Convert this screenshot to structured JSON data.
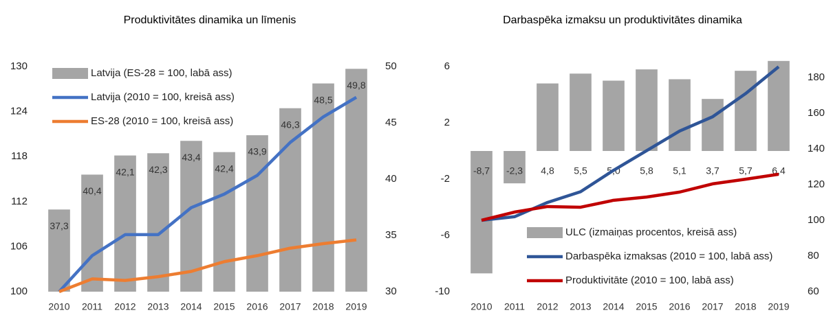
{
  "chart_data": [
    {
      "type": "combo",
      "title": "Produktivitātes dinamika un līmenis",
      "categories": [
        "2010",
        "2011",
        "2012",
        "2013",
        "2014",
        "2015",
        "2016",
        "2017",
        "2018",
        "2019"
      ],
      "ylim": [
        100,
        130
      ],
      "yticks": [
        100,
        106,
        112,
        118,
        124,
        130
      ],
      "y2lim": [
        30,
        50
      ],
      "y2ticks": [
        30,
        35,
        40,
        45,
        50
      ],
      "legend": "upper left",
      "series": [
        {
          "name": "Latvija (ES-28 = 100, labā ass)",
          "kind": "bar",
          "axis": "y2",
          "color": "#a5a5a5",
          "values": [
            37.3,
            40.4,
            42.1,
            42.3,
            43.4,
            42.4,
            43.9,
            46.3,
            48.5,
            49.8
          ],
          "value_labels": [
            "37,3",
            "40,4",
            "42,1",
            "42,3",
            "43,4",
            "42,4",
            "43,9",
            "46,3",
            "48,5",
            "49,8"
          ]
        },
        {
          "name": "Latvija (2010 = 100, kreisā ass)",
          "kind": "line",
          "axis": "y",
          "color": "#4472c4",
          "values": [
            100,
            104.8,
            107.6,
            107.6,
            111.2,
            113.0,
            115.5,
            119.9,
            123.3,
            125.9
          ]
        },
        {
          "name": "ES-28 (2010 = 100, kreisā ass)",
          "kind": "line",
          "axis": "y",
          "color": "#ed7d31",
          "values": [
            100,
            101.7,
            101.5,
            102.0,
            102.7,
            104.0,
            104.8,
            105.8,
            106.4,
            106.9
          ]
        }
      ]
    },
    {
      "type": "combo",
      "title": "Darbaspēka izmaksu un produktivitātes dinamika",
      "categories": [
        "2010",
        "2011",
        "2012",
        "2013",
        "2014",
        "2015",
        "2016",
        "2017",
        "2018",
        "2019"
      ],
      "ylim": [
        -10,
        7
      ],
      "yticks": [
        -10,
        -6,
        -2,
        2,
        6
      ],
      "y2lim": [
        60,
        194
      ],
      "y2ticks": [
        60,
        80,
        100,
        120,
        140,
        160,
        180
      ],
      "legend": "lower right",
      "series": [
        {
          "name": "ULC (izmaiņas procentos, kreisā ass)",
          "kind": "bar",
          "axis": "y",
          "color": "#a5a5a5",
          "values": [
            -8.7,
            -2.3,
            4.8,
            5.5,
            5.0,
            5.8,
            5.1,
            3.7,
            5.7,
            6.4
          ],
          "value_labels": [
            "-8,7",
            "-2,3",
            "4,8",
            "5,5",
            "5,0",
            "5,8",
            "5,1",
            "3,7",
            "5,7",
            "6,4"
          ]
        },
        {
          "name": "Darbaspēka izmaksas (2010 = 100, labā ass)",
          "kind": "line",
          "axis": "y2",
          "color": "#2f5597",
          "values": [
            100,
            102,
            110,
            116,
            128,
            139,
            150,
            158,
            171,
            186
          ]
        },
        {
          "name": "Produktivitāte (2010 = 100, labā ass)",
          "kind": "line",
          "axis": "y2",
          "color": "#c00000",
          "values": [
            100,
            104.6,
            107.7,
            107.3,
            111.2,
            113.0,
            115.8,
            120.4,
            123.0,
            125.8
          ]
        }
      ]
    }
  ]
}
